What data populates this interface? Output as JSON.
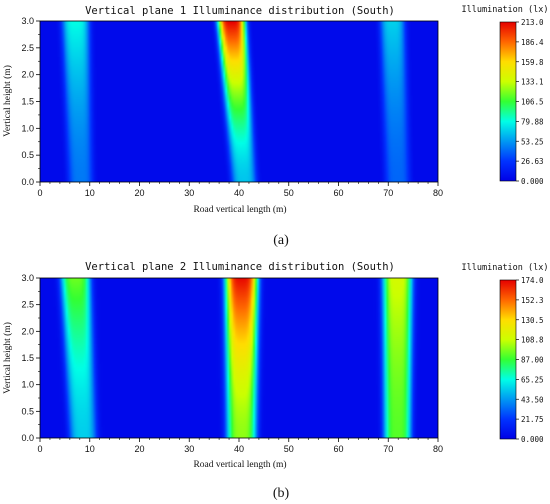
{
  "chart_data": [
    {
      "type": "heatmap",
      "panel_label": "(a)",
      "title": "Vertical plane 1 Illuminance distribution (South)",
      "xlabel": "Road vertical length (m)",
      "ylabel": "Vertical height (m)",
      "xlim": [
        0,
        80
      ],
      "ylim": [
        0,
        3
      ],
      "x_ticks": [
        "0",
        "10",
        "20",
        "30",
        "40",
        "50",
        "60",
        "70",
        "80"
      ],
      "y_ticks": [
        "0.0",
        "0.5",
        "1.0",
        "1.5",
        "2.0",
        "2.5",
        "3.0"
      ],
      "colorbar_label": "Illumination (lx)",
      "colorbar_ticks": [
        "213.0",
        "186.4",
        "159.8",
        "133.1",
        "106.5",
        "79.88",
        "53.25",
        "26.63",
        "0.000"
      ],
      "colorbar_range": [
        0,
        213
      ],
      "background_value": 5,
      "bands": [
        {
          "x_bottom": 8,
          "x_top": 7,
          "width_bottom": 5,
          "width_top": 5.5,
          "peak_bottom": 45,
          "peak_top": 80
        },
        {
          "x_bottom": 41,
          "x_top": 38.5,
          "width_bottom": 5,
          "width_top": 5.5,
          "peak_bottom": 65,
          "peak_top": 213
        },
        {
          "x_bottom": 72,
          "x_top": 71,
          "width_bottom": 5,
          "width_top": 5,
          "peak_bottom": 40,
          "peak_top": 68
        }
      ]
    },
    {
      "type": "heatmap",
      "panel_label": "(b)",
      "title": "Vertical plane 2 Illuminance distribution (South)",
      "xlabel": "Road vertical length (m)",
      "ylabel": "Vertical height (m)",
      "xlim": [
        0,
        80
      ],
      "ylim": [
        0,
        3
      ],
      "x_ticks": [
        "0",
        "10",
        "20",
        "30",
        "40",
        "50",
        "60",
        "70",
        "80"
      ],
      "y_ticks": [
        "0.0",
        "0.5",
        "1.0",
        "1.5",
        "2.0",
        "2.5",
        "3.0"
      ],
      "colorbar_label": "Illumination (lx)",
      "colorbar_ticks": [
        "174.0",
        "152.3",
        "130.5",
        "108.8",
        "87.00",
        "65.25",
        "43.50",
        "21.75",
        "0.000"
      ],
      "colorbar_range": [
        0,
        174
      ],
      "background_value": 4,
      "bands": [
        {
          "x_bottom": 8.5,
          "x_top": 7,
          "width_bottom": 5.5,
          "width_top": 6,
          "peak_bottom": 55,
          "peak_top": 95
        },
        {
          "x_bottom": 40.5,
          "x_top": 40.5,
          "width_bottom": 6,
          "width_top": 6.5,
          "peak_bottom": 100,
          "peak_top": 172
        },
        {
          "x_bottom": 72,
          "x_top": 72,
          "width_bottom": 5.5,
          "width_top": 6,
          "peak_bottom": 92,
          "peak_top": 112
        }
      ]
    }
  ]
}
